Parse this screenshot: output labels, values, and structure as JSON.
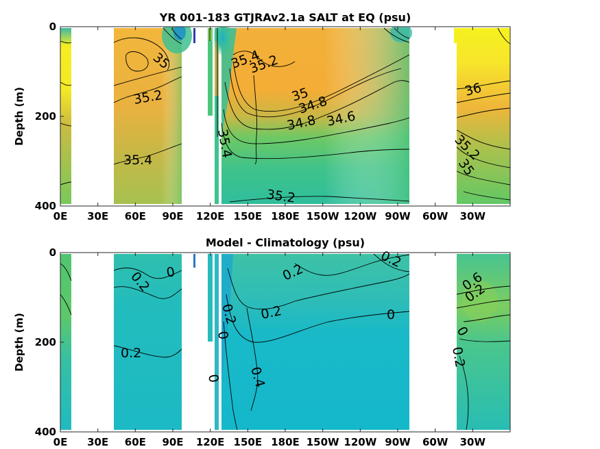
{
  "chart_data": [
    {
      "type": "heatmap",
      "title": "YR 001-183 GTJRAv2.1a SALT at EQ (psu)",
      "ylabel": "Depth (m)",
      "xlabel": "",
      "ylim": [
        400,
        0
      ],
      "y_ticks": [
        "0",
        "200",
        "400"
      ],
      "x_ticks": [
        "0E",
        "30E",
        "60E",
        "90E",
        "120E",
        "150E",
        "180E",
        "150W",
        "120W",
        "90W",
        "60W",
        "30W"
      ],
      "colormap": "parula",
      "colors": {
        "low": "#2bb5c0",
        "mid": "#5fc86a",
        "warm": "#f0b93a",
        "high": "#f6f51f",
        "fresh": "#1d3fae"
      },
      "contour_labels": [
        "35",
        "35.2",
        "35.4",
        "35.4",
        "35.2",
        "35",
        "34.8",
        "34.8",
        "34.6",
        "35.4",
        "35.2",
        "36",
        "35.2",
        "35"
      ]
    },
    {
      "type": "heatmap",
      "title": "Model - Climatology (psu)",
      "ylabel": "Depth (m)",
      "xlabel": "",
      "ylim": [
        400,
        0
      ],
      "y_ticks": [
        "0",
        "200",
        "400"
      ],
      "x_ticks": [
        "0E",
        "30E",
        "60E",
        "90E",
        "120E",
        "150E",
        "180E",
        "150W",
        "120W",
        "90W",
        "60W",
        "30W"
      ],
      "colormap": "parula",
      "colors": {
        "base": "#16b9c9",
        "teal": "#2fbdb2",
        "green": "#55c77a",
        "lime": "#8ed055"
      },
      "contour_labels": [
        "0.2",
        "0",
        "0.2",
        "0.2",
        "0.2",
        "0",
        "0.2",
        "0.2",
        "0",
        "0",
        "0.4",
        "0.6",
        "0.2",
        "0",
        "0.2"
      ]
    }
  ]
}
